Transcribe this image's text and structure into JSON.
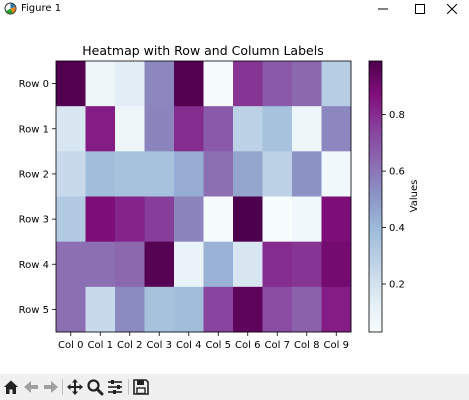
{
  "window": {
    "title": "Figure 1",
    "icon": "matplotlib-icon",
    "controls": [
      "minimize-icon",
      "maximize-icon",
      "close-icon"
    ]
  },
  "toolbar": {
    "buttons": [
      {
        "name": "home-button",
        "icon": "home-icon"
      },
      {
        "name": "back-button",
        "icon": "arrow-left-icon"
      },
      {
        "name": "forward-button",
        "icon": "arrow-right-icon"
      },
      {
        "name": "pan-button",
        "icon": "move-icon"
      },
      {
        "name": "zoom-button",
        "icon": "magnifier-icon"
      },
      {
        "name": "configure-subplots-button",
        "icon": "sliders-icon"
      },
      {
        "name": "save-button",
        "icon": "floppy-disk-icon"
      }
    ]
  },
  "chart_data": {
    "type": "heatmap",
    "title": "Heatmap with Row and Column Labels",
    "row_labels": [
      "Row 0",
      "Row 1",
      "Row 2",
      "Row 3",
      "Row 4",
      "Row 5"
    ],
    "col_labels": [
      "Col 0",
      "Col 1",
      "Col 2",
      "Col 3",
      "Col 4",
      "Col 5",
      "Col 6",
      "Col 7",
      "Col 8",
      "Col 9"
    ],
    "values": [
      [
        0.98,
        0.08,
        0.14,
        0.55,
        0.98,
        0.04,
        0.78,
        0.68,
        0.64,
        0.3
      ],
      [
        0.18,
        0.84,
        0.08,
        0.56,
        0.8,
        0.68,
        0.28,
        0.36,
        0.08,
        0.55
      ],
      [
        0.24,
        0.38,
        0.36,
        0.36,
        0.44,
        0.62,
        0.46,
        0.28,
        0.52,
        0.06
      ],
      [
        0.32,
        0.88,
        0.82,
        0.76,
        0.56,
        0.04,
        0.99,
        0.03,
        0.06,
        0.88
      ],
      [
        0.62,
        0.62,
        0.64,
        0.97,
        0.1,
        0.42,
        0.18,
        0.8,
        0.78,
        0.9
      ],
      [
        0.62,
        0.24,
        0.54,
        0.36,
        0.38,
        0.74,
        0.95,
        0.72,
        0.66,
        0.84
      ]
    ],
    "colormap": "BuPu",
    "colorbar": {
      "label": "Values",
      "ticks": [
        0.2,
        0.4,
        0.6,
        0.8
      ],
      "tick_labels": [
        "0.2",
        "0.4",
        "0.6",
        "0.8"
      ],
      "range": [
        0.03,
        0.99
      ]
    }
  }
}
